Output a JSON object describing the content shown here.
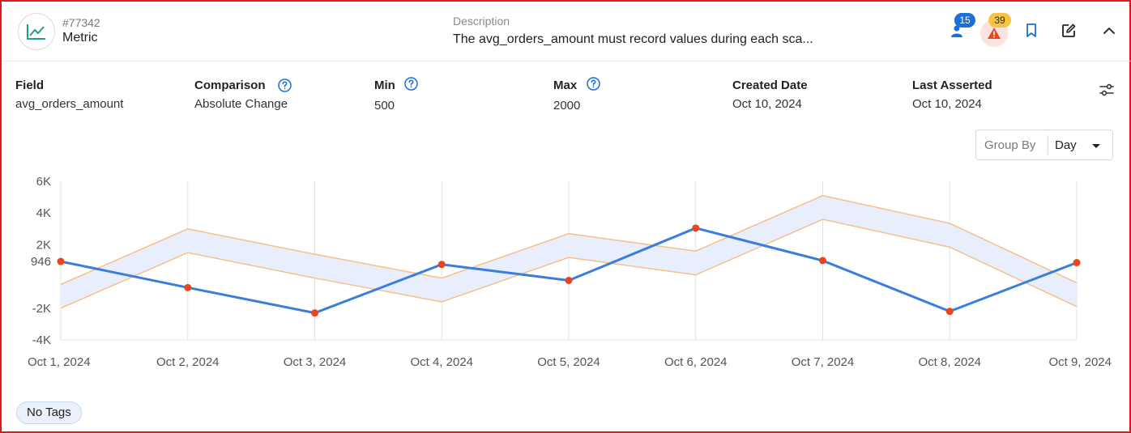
{
  "header": {
    "metric_id": "#77342",
    "metric_type": "Metric",
    "metric_icon": "line-chart-icon",
    "description_label": "Description",
    "description_text": "The avg_orders_amount must record values during each sca...",
    "users_count": "15",
    "alerts_count": "39"
  },
  "fields": {
    "field_label": "Field",
    "field_value": "avg_orders_amount",
    "comparison_label": "Comparison",
    "comparison_value": "Absolute Change",
    "min_label": "Min",
    "min_value": "500",
    "max_label": "Max",
    "max_value": "2000",
    "created_label": "Created Date",
    "created_value": "Oct 10, 2024",
    "asserted_label": "Last Asserted",
    "asserted_value": "Oct 10, 2024"
  },
  "group_by": {
    "label": "Group By",
    "value": "Day"
  },
  "colors": {
    "line": "#3b7ddd",
    "point": "#e8461e",
    "band_edge": "#f5c08a",
    "band_fill": "#e8eefb",
    "accent": "#1b6fd8",
    "alert": "#e8461e",
    "teal_icon": "#1f9e8f"
  },
  "chart_data": {
    "type": "line",
    "x": [
      "Oct 1, 2024",
      "Oct 2, 2024",
      "Oct 3, 2024",
      "Oct 4, 2024",
      "Oct 5, 2024",
      "Oct 6, 2024",
      "Oct 7, 2024",
      "Oct 8, 2024",
      "Oct 9, 2024"
    ],
    "series": [
      {
        "values": [
          946,
          -700,
          -2300,
          760,
          -250,
          3050,
          1000,
          -2200,
          870
        ]
      }
    ],
    "band": {
      "upper": [
        -500,
        3000,
        1400,
        -100,
        2700,
        1600,
        5100,
        3350,
        -400
      ],
      "lower": [
        -2000,
        1500,
        -100,
        -1600,
        1200,
        100,
        3600,
        1850,
        -1900
      ]
    },
    "yticks": [
      "6K",
      "4K",
      "2K",
      "946",
      "-2K",
      "-4K"
    ],
    "ytick_values": [
      6000,
      4000,
      2000,
      946,
      -2000,
      -4000
    ],
    "ylim": [
      -4000,
      6000
    ],
    "grid": "vertical"
  },
  "tags": {
    "label": "No Tags"
  }
}
